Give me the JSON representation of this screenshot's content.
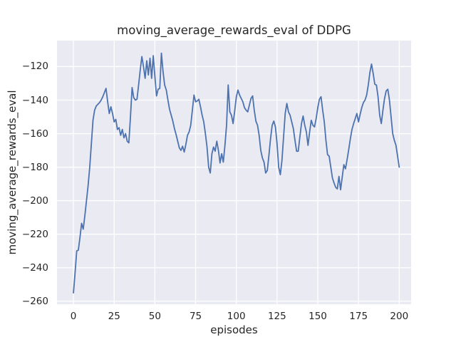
{
  "chart_data": {
    "type": "line",
    "title": "moving_average_rewards_eval of DDPG",
    "xlabel": "episodes",
    "ylabel": "moving_average_rewards_eval",
    "legend_position": "none",
    "grid": true,
    "x_start": 0,
    "x_step": 1,
    "xticks": [
      0,
      25,
      50,
      75,
      100,
      125,
      150,
      175,
      200
    ],
    "yticks": [
      -120,
      -140,
      -160,
      -180,
      -200,
      -220,
      -240,
      -260
    ],
    "xlim": [
      -10.1,
      207.3
    ],
    "ylim": [
      -261.8,
      -104.5
    ],
    "series": [
      {
        "name": "moving_average_rewards_eval",
        "color": "#4C72B0",
        "values": [
          -255,
          -243,
          -230,
          -229.5,
          -222,
          -213.5,
          -217,
          -209,
          -200,
          -191,
          -180,
          -166,
          -152,
          -146,
          -143.5,
          -142.5,
          -141.5,
          -140,
          -138,
          -135.5,
          -133,
          -141,
          -148,
          -144,
          -148,
          -153,
          -151.5,
          -157.5,
          -156.5,
          -161,
          -157.5,
          -162.5,
          -160,
          -164.5,
          -165.5,
          -150,
          -132.5,
          -138.5,
          -140,
          -139.5,
          -131,
          -122,
          -114,
          -120,
          -127,
          -116.5,
          -125,
          -115,
          -127,
          -113.5,
          -126,
          -137.5,
          -133.5,
          -133,
          -112,
          -123,
          -131,
          -134,
          -140,
          -145.5,
          -149,
          -152.5,
          -157,
          -160.5,
          -164.5,
          -168.5,
          -170,
          -167.5,
          -171,
          -166.5,
          -161,
          -159,
          -155,
          -146,
          -137,
          -141,
          -140.5,
          -139.5,
          -144,
          -149,
          -153,
          -160,
          -168,
          -180,
          -183.5,
          -172,
          -168,
          -170.5,
          -164.5,
          -170,
          -177.5,
          -172,
          -177,
          -167,
          -155,
          -131,
          -147,
          -149,
          -154,
          -146.5,
          -138,
          -134,
          -137,
          -139,
          -141,
          -144.5,
          -146,
          -147,
          -143,
          -139,
          -137.5,
          -146,
          -152.5,
          -155,
          -161,
          -170,
          -174.5,
          -177,
          -183.5,
          -182,
          -173,
          -163,
          -155,
          -152.5,
          -156,
          -166,
          -180,
          -184.5,
          -176,
          -162,
          -148,
          -142,
          -147,
          -149,
          -153,
          -157,
          -164,
          -170.5,
          -170.5,
          -162,
          -154,
          -149.5,
          -155,
          -159,
          -167,
          -159,
          -152,
          -155,
          -156,
          -151,
          -144.5,
          -139.5,
          -138,
          -146,
          -153,
          -164,
          -172.5,
          -173.5,
          -180,
          -186.5,
          -189.5,
          -192,
          -193,
          -185.5,
          -193.5,
          -186,
          -178.5,
          -181,
          -175.5,
          -169.5,
          -163,
          -157.5,
          -154,
          -151,
          -148,
          -153,
          -148.5,
          -144.5,
          -141.5,
          -140,
          -137,
          -131,
          -123.5,
          -118.5,
          -124,
          -130.5,
          -131,
          -138,
          -149,
          -154,
          -146,
          -139,
          -134.5,
          -133.5,
          -140,
          -150,
          -160,
          -164,
          -167,
          -173.5,
          -180
        ]
      }
    ],
    "styles": {
      "figure_background": "#ffffff",
      "axes_background": "#EAEAF2",
      "grid_color": "#ffffff",
      "text_color": "#262626",
      "line_color": "#4C72B0",
      "line_width": 1.8
    }
  }
}
